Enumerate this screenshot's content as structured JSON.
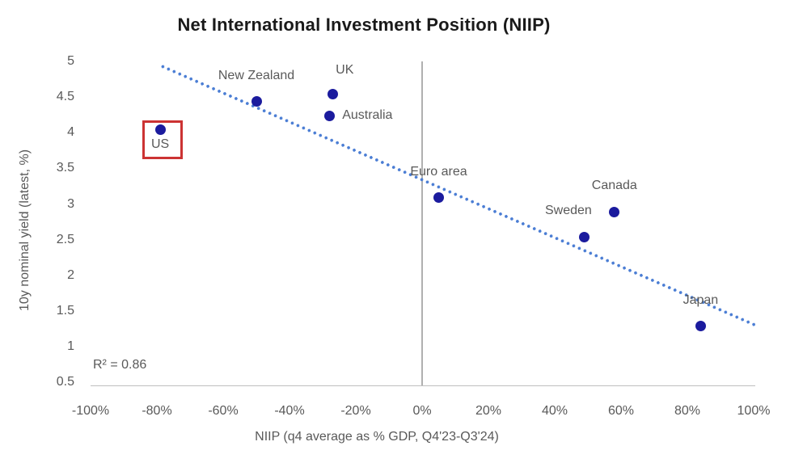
{
  "chart_data": {
    "type": "scatter",
    "title": "Net International Investment Position (NIIP)",
    "xlabel": "NIIP (q4 average as % GDP, Q4'23-Q3'24)",
    "ylabel": "10y nominal yield (latest, %)",
    "xlim": [
      -100,
      100
    ],
    "ylim": [
      0.5,
      5
    ],
    "grid": "vertical-zero-line-only",
    "legend": "none",
    "x_ticks": [
      {
        "value": -100,
        "label": "-100%"
      },
      {
        "value": -80,
        "label": "-80%"
      },
      {
        "value": -60,
        "label": "-60%"
      },
      {
        "value": -40,
        "label": "-40%"
      },
      {
        "value": -20,
        "label": "-20%"
      },
      {
        "value": 0,
        "label": "0%"
      },
      {
        "value": 20,
        "label": "20%"
      },
      {
        "value": 40,
        "label": "40%"
      },
      {
        "value": 60,
        "label": "60%"
      },
      {
        "value": 80,
        "label": "80%"
      },
      {
        "value": 100,
        "label": "100%"
      }
    ],
    "y_ticks": [
      {
        "value": 5,
        "label": "5"
      },
      {
        "value": 4.5,
        "label": "4.5"
      },
      {
        "value": 4,
        "label": "4"
      },
      {
        "value": 3.5,
        "label": "3.5"
      },
      {
        "value": 3,
        "label": "3"
      },
      {
        "value": 2.5,
        "label": "2.5"
      },
      {
        "value": 2,
        "label": "2"
      },
      {
        "value": 1.5,
        "label": "1.5"
      },
      {
        "value": 1,
        "label": "1"
      },
      {
        "value": 0.5,
        "label": "0.5"
      }
    ],
    "points": [
      {
        "label": "US",
        "x": -79,
        "y": 4.05,
        "label_position": "below",
        "highlighted": true
      },
      {
        "label": "New Zealand",
        "x": -50,
        "y": 4.45,
        "label_position": "above",
        "highlighted": false
      },
      {
        "label": "UK",
        "x": -27,
        "y": 4.55,
        "label_position": "above-right",
        "highlighted": false
      },
      {
        "label": "Australia",
        "x": -28,
        "y": 4.25,
        "label_position": "right",
        "highlighted": false
      },
      {
        "label": "Euro area",
        "x": 5,
        "y": 3.1,
        "label_position": "above",
        "highlighted": false
      },
      {
        "label": "Sweden",
        "x": 49,
        "y": 2.55,
        "label_position": "above-left",
        "highlighted": false
      },
      {
        "label": "Canada",
        "x": 58,
        "y": 2.9,
        "label_position": "above",
        "highlighted": false
      },
      {
        "label": "Japan",
        "x": 84,
        "y": 1.3,
        "label_position": "above",
        "highlighted": false
      }
    ],
    "trendline": {
      "style": "dotted",
      "x1": -79,
      "y1": 4.95,
      "x2": 101,
      "y2": 1.3
    },
    "r_squared": {
      "text": "R² = 0.86"
    },
    "colors": {
      "marker": "#1b1b9e",
      "trendline": "#4a7dd4",
      "text_gray": "#595959",
      "title": "#1a1a1a",
      "axis_line": "#bfbfbf",
      "zero_line": "#b0b0b0",
      "highlight_box": "#cc3333",
      "background": "#ffffff"
    }
  }
}
